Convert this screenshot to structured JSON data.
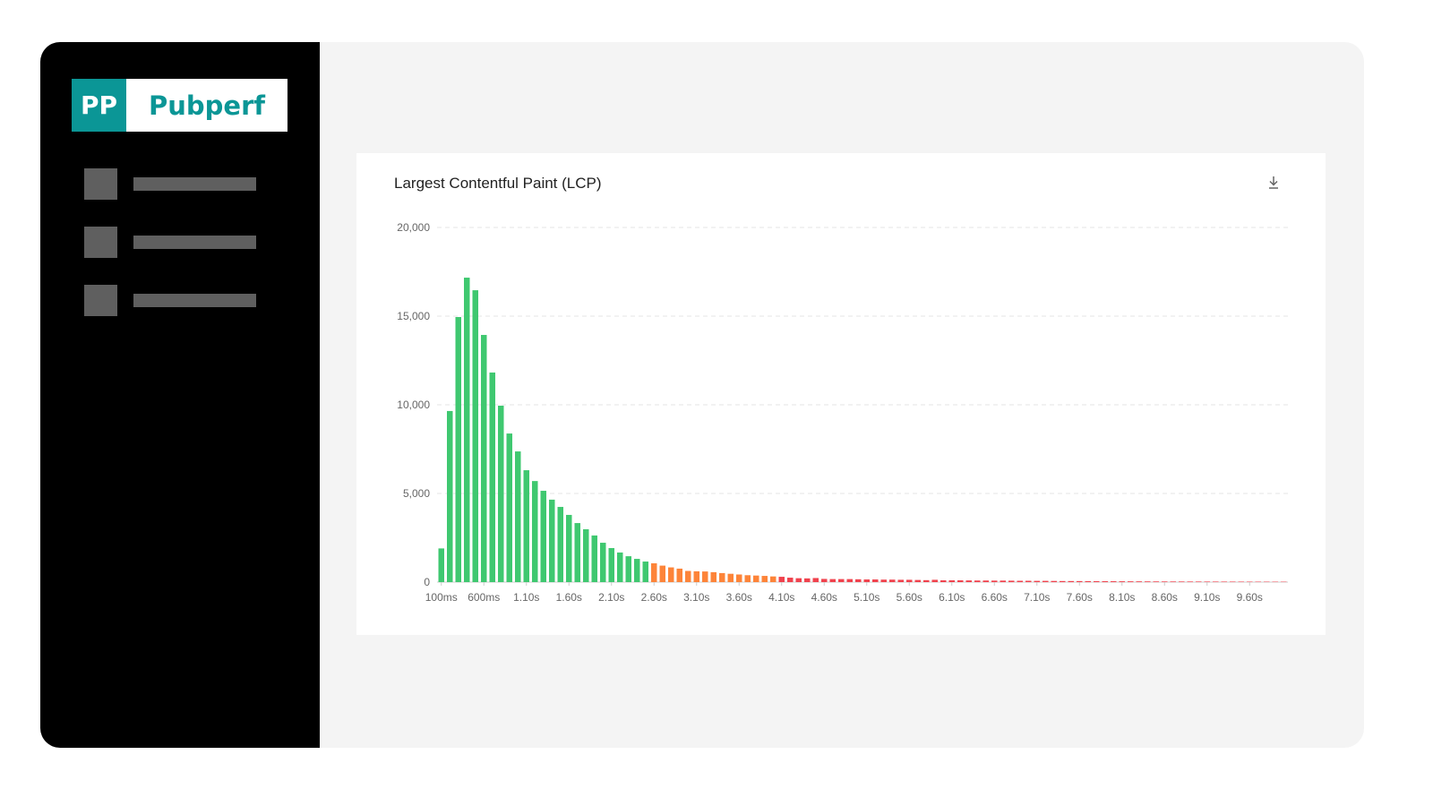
{
  "brand": {
    "mark": "PP",
    "name": "Pubperf",
    "color": "#0b9696"
  },
  "sidebar": {
    "items": [
      {
        "icon": "placeholder-icon"
      },
      {
        "icon": "placeholder-icon"
      },
      {
        "icon": "placeholder-icon"
      }
    ]
  },
  "card": {
    "title": "Largest Contentful Paint (LCP)",
    "download_icon": "download-icon"
  },
  "chart_data": {
    "type": "bar",
    "title": "Largest Contentful Paint (LCP)",
    "xlabel": "",
    "ylabel": "",
    "ylim": [
      0,
      20000
    ],
    "yticks": [
      "0",
      "5,000",
      "10,000",
      "15,000",
      "20,000"
    ],
    "ytick_values": [
      0,
      5000,
      10000,
      15000,
      20000
    ],
    "grid": true,
    "x_start_ms": 100,
    "x_step_ms": 100,
    "xtick_labels": [
      "100ms",
      "600ms",
      "1.10s",
      "1.60s",
      "2.10s",
      "2.60s",
      "3.10s",
      "3.60s",
      "4.10s",
      "4.60s",
      "5.10s",
      "5.60s",
      "6.10s",
      "6.60s",
      "7.10s",
      "7.60s",
      "8.10s",
      "8.60s",
      "9.10s",
      "9.60s"
    ],
    "colors": {
      "good": "#3fc870",
      "needs_improvement": "#fd8439",
      "poor": "#f0424d"
    },
    "thresholds_ms": {
      "good_max": 2500,
      "needs_improvement_max": 4000
    },
    "values": [
      1900,
      9650,
      14950,
      17170,
      16460,
      13940,
      11820,
      9950,
      8380,
      7370,
      6310,
      5700,
      5150,
      4650,
      4240,
      3790,
      3330,
      2980,
      2630,
      2220,
      1920,
      1670,
      1460,
      1310,
      1160,
      1060,
      930,
      830,
      760,
      630,
      610,
      600,
      560,
      510,
      470,
      430,
      390,
      370,
      350,
      320,
      300,
      250,
      220,
      210,
      230,
      180,
      170,
      170,
      170,
      160,
      150,
      150,
      140,
      140,
      130,
      130,
      120,
      110,
      130,
      100,
      100,
      100,
      95,
      90,
      90,
      85,
      85,
      80,
      75,
      75,
      70,
      70,
      65,
      60,
      60,
      58,
      55,
      52,
      50,
      48,
      46,
      44,
      42,
      40,
      38,
      36,
      35,
      34,
      33,
      32,
      31,
      30,
      29,
      28,
      27,
      26,
      25,
      24,
      23,
      22
    ]
  }
}
